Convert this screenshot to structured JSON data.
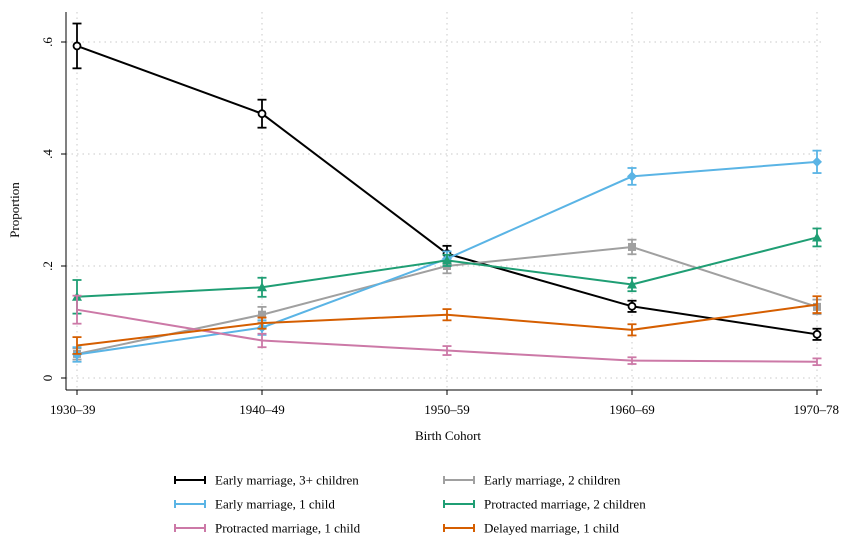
{
  "chart_data": {
    "type": "line",
    "title": "",
    "xlabel": "Birth Cohort",
    "ylabel": "Proportion",
    "categories": [
      "1930–39",
      "1940–49",
      "1950–59",
      "1960–69",
      "1970–78"
    ],
    "y_ticks": [
      {
        "value": 0,
        "label": "0"
      },
      {
        "value": 0.2,
        "label": ".2"
      },
      {
        "value": 0.4,
        "label": ".4"
      },
      {
        "value": 0.6,
        "label": ".6"
      }
    ],
    "ylim": [
      -0.02,
      0.645
    ],
    "grid": true,
    "legend_position": "bottom",
    "series": [
      {
        "name": "Early marriage, 3+ children",
        "color": "#000000",
        "marker": "circle",
        "values": [
          0.593,
          0.472,
          0.222,
          0.128,
          0.078
        ],
        "err_low": [
          0.553,
          0.447,
          0.208,
          0.118,
          0.068
        ],
        "err_high": [
          0.633,
          0.497,
          0.236,
          0.138,
          0.088
        ]
      },
      {
        "name": "Early marriage, 2 children",
        "color": "#a0a0a0",
        "marker": "square",
        "values": [
          0.043,
          0.113,
          0.2,
          0.234,
          0.127
        ],
        "err_low": [
          0.033,
          0.099,
          0.187,
          0.221,
          0.114
        ],
        "err_high": [
          0.053,
          0.127,
          0.213,
          0.247,
          0.14
        ]
      },
      {
        "name": "Early marriage, 1 child",
        "color": "#5ab4e5",
        "marker": "diamond",
        "values": [
          0.042,
          0.09,
          0.213,
          0.36,
          0.386
        ],
        "err_low": [
          0.029,
          0.077,
          0.2,
          0.345,
          0.366
        ],
        "err_high": [
          0.055,
          0.103,
          0.226,
          0.375,
          0.406
        ]
      },
      {
        "name": "Protracted marriage, 2 children",
        "color": "#1f9e74",
        "marker": "triangle",
        "values": [
          0.145,
          0.162,
          0.21,
          0.167,
          0.251
        ],
        "err_low": [
          0.115,
          0.145,
          0.2,
          0.155,
          0.235
        ],
        "err_high": [
          0.175,
          0.179,
          0.22,
          0.179,
          0.267
        ]
      },
      {
        "name": "Protracted marriage, 1 child",
        "color": "#cc79a7",
        "marker": "bar",
        "values": [
          0.122,
          0.067,
          0.049,
          0.031,
          0.029
        ],
        "err_low": [
          0.097,
          0.055,
          0.041,
          0.025,
          0.023
        ],
        "err_high": [
          0.147,
          0.079,
          0.057,
          0.037,
          0.035
        ]
      },
      {
        "name": "Delayed marriage, 1 child",
        "color": "#d55e00",
        "marker": "bar",
        "values": [
          0.058,
          0.098,
          0.113,
          0.086,
          0.131
        ],
        "err_low": [
          0.043,
          0.088,
          0.103,
          0.076,
          0.116
        ],
        "err_high": [
          0.073,
          0.108,
          0.123,
          0.096,
          0.146
        ]
      }
    ]
  }
}
